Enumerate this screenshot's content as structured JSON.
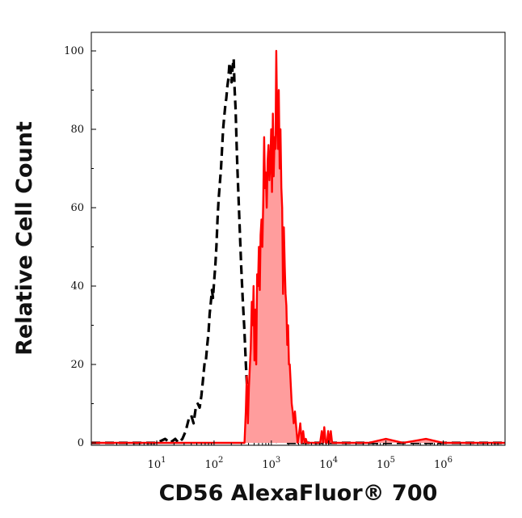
{
  "chart_data": {
    "type": "area",
    "title": "",
    "xlabel": "CD56 AlexaFluor® 700",
    "ylabel": "Relative Cell Count",
    "x_scale": "log",
    "xlim": [
      0.72,
      12000000
    ],
    "ylim": [
      0,
      105
    ],
    "grid": false,
    "x_ticks": [
      {
        "base": "10",
        "exp": "1",
        "value": 10
      },
      {
        "base": "10",
        "exp": "2",
        "value": 100
      },
      {
        "base": "10",
        "exp": "3",
        "value": 1000
      },
      {
        "base": "10",
        "exp": "4",
        "value": 10000
      },
      {
        "base": "10",
        "exp": "5",
        "value": 100000
      },
      {
        "base": "10",
        "exp": "6",
        "value": 1000000
      }
    ],
    "y_ticks": [
      {
        "label": "0",
        "value": 0
      },
      {
        "label": "20",
        "value": 20
      },
      {
        "label": "40",
        "value": 40
      },
      {
        "label": "60",
        "value": 60
      },
      {
        "label": "80",
        "value": 80
      },
      {
        "label": "100",
        "value": 100
      }
    ],
    "series": [
      {
        "style": "dashed",
        "color": "#000000",
        "fill": "none",
        "x": [
          0.72,
          10,
          14,
          17,
          21,
          24,
          28,
          32,
          36,
          40,
          44,
          48,
          52,
          56,
          60,
          63,
          66,
          69,
          72,
          76,
          80,
          84,
          88,
          92,
          96,
          100,
          105,
          110,
          115,
          120,
          126,
          132,
          138,
          144,
          150,
          157,
          164,
          171,
          178,
          186,
          194,
          202,
          211,
          220,
          229,
          238,
          247,
          256,
          268,
          282,
          298,
          316,
          338,
          360,
          384,
          410,
          440,
          480,
          560,
          700,
          900,
          1150,
          1400,
          1800,
          12000000
        ],
        "y": [
          0,
          0,
          1,
          0,
          1,
          0,
          1,
          3,
          6,
          7,
          5,
          9,
          10,
          9,
          12,
          15,
          18,
          21,
          21,
          25,
          28,
          33,
          36,
          39,
          37,
          41,
          45,
          50,
          57,
          62,
          66,
          70,
          75,
          80,
          83,
          86,
          88,
          91,
          93,
          97,
          95,
          92,
          96,
          98,
          90,
          85,
          77,
          70,
          62,
          54,
          45,
          37,
          29,
          20,
          12,
          6,
          2,
          0,
          1,
          0,
          1,
          0,
          1,
          0,
          0
        ]
      },
      {
        "style": "solid",
        "color": "#ff0000",
        "fill": "#ff9d9d",
        "x": [
          0.72,
          300,
          340,
          358,
          373,
          390,
          405,
          420,
          437,
          455,
          473,
          490,
          508,
          526,
          545,
          565,
          585,
          606,
          628,
          650,
          673,
          697,
          722,
          748,
          775,
          803,
          832,
          862,
          893,
          925,
          958,
          992,
          1027,
          1063,
          1100,
          1139,
          1179,
          1220,
          1262,
          1306,
          1350,
          1397,
          1445,
          1495,
          1546,
          1600,
          1655,
          1712,
          1771,
          1832,
          1895,
          1960,
          2028,
          2100,
          2180,
          2270,
          2360,
          2460,
          2580,
          2720,
          2870,
          3030,
          3200,
          3400,
          3600,
          3800,
          4000,
          4200,
          4500,
          5000,
          5600,
          6300,
          7100,
          7600,
          8000,
          8400,
          8900,
          9400,
          9800,
          10300,
          10900,
          11500,
          12500,
          15000,
          20000,
          50000,
          100000,
          200000,
          500000,
          1000000,
          12000000
        ],
        "y": [
          0,
          0,
          0,
          8,
          17,
          5,
          14,
          19,
          24,
          36,
          30,
          40,
          21,
          34,
          20,
          43,
          40,
          50,
          39,
          53,
          57,
          50,
          62,
          78,
          65,
          69,
          60,
          72,
          76,
          67,
          71,
          80,
          64,
          84,
          68,
          78,
          75,
          100,
          82,
          75,
          90,
          70,
          80,
          65,
          60,
          38,
          55,
          45,
          38,
          35,
          25,
          30,
          20,
          20,
          15,
          10,
          8,
          5,
          8,
          4,
          0,
          2,
          5,
          0,
          3,
          0,
          1,
          0,
          0,
          0,
          0,
          0,
          0,
          3,
          0,
          4,
          0,
          0,
          3,
          0,
          3,
          0,
          0,
          0,
          0,
          0,
          1,
          0,
          1,
          0,
          0
        ]
      }
    ]
  }
}
